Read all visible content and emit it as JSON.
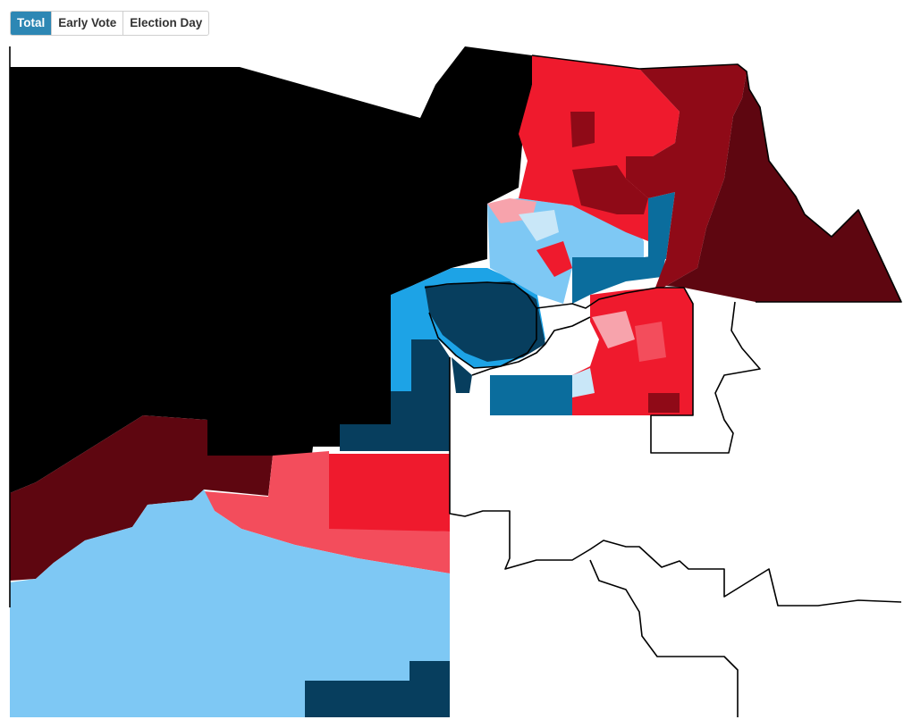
{
  "tabs": [
    {
      "label": "Total",
      "active": true
    },
    {
      "label": "Early Vote",
      "active": false
    },
    {
      "label": "Election Day",
      "active": false
    }
  ],
  "palette": {
    "r4": "#5e0610",
    "r3": "#8f0a17",
    "r2": "#ef1a2d",
    "r1": "#f34d5c",
    "r0": "#f7a3ac",
    "d0": "#c9e7f8",
    "d1": "#7ec8f4",
    "d2": "#1da3e6",
    "d3": "#0b6d9d",
    "d4": "#073e5e",
    "none": "#000000",
    "border": "#000000"
  }
}
